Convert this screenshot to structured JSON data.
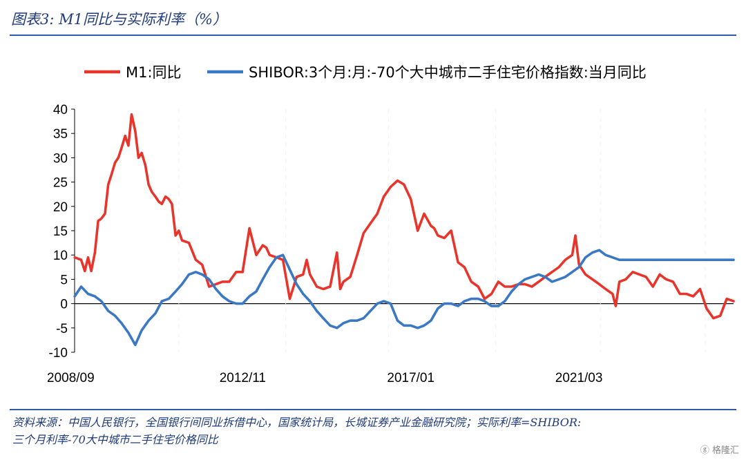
{
  "title": "图表3:  M1同比与实际利率（%）",
  "source_line1": "资料来源：中国人民银行，全国银行间同业拆借中心，国家统计局，长城证券产业金融研究院；实际利率=SHIBOR:",
  "source_line2": "三个月利率-70大中城市二手住宅价格同比",
  "watermark": "ⓖ 格隆汇",
  "chart_data": {
    "type": "line",
    "title": "",
    "xlabel": "",
    "ylabel": "",
    "ylim": [
      -10,
      40
    ],
    "yticks": [
      40,
      35,
      30,
      25,
      20,
      15,
      10,
      5,
      0,
      -5,
      -10
    ],
    "xlim": [
      2008.667,
      2025.0
    ],
    "xtick_labels": [
      {
        "label": "2008/09",
        "x": 2008.667
      },
      {
        "label": "2012/11",
        "x": 2012.833
      },
      {
        "label": "2017/01",
        "x": 2017.0
      },
      {
        "label": "2021/03",
        "x": 2021.167
      }
    ],
    "grid": false,
    "legend": "top",
    "series": [
      {
        "name": "M1:同比",
        "color": "#e8352b",
        "x": [
          2008.67,
          2008.83,
          2008.92,
          2009.0,
          2009.08,
          2009.17,
          2009.25,
          2009.33,
          2009.42,
          2009.5,
          2009.58,
          2009.67,
          2009.75,
          2009.83,
          2009.92,
          2010.0,
          2010.08,
          2010.17,
          2010.25,
          2010.33,
          2010.42,
          2010.5,
          2010.58,
          2010.67,
          2010.75,
          2010.83,
          2010.92,
          2011.0,
          2011.08,
          2011.17,
          2011.25,
          2011.33,
          2011.5,
          2011.67,
          2011.83,
          2012.0,
          2012.17,
          2012.33,
          2012.5,
          2012.67,
          2012.83,
          2013.0,
          2013.17,
          2013.33,
          2013.42,
          2013.5,
          2013.67,
          2013.83,
          2014.0,
          2014.17,
          2014.33,
          2014.42,
          2014.5,
          2014.67,
          2014.83,
          2015.0,
          2015.17,
          2015.25,
          2015.33,
          2015.5,
          2015.67,
          2015.83,
          2016.0,
          2016.17,
          2016.33,
          2016.5,
          2016.67,
          2016.83,
          2017.0,
          2017.17,
          2017.33,
          2017.5,
          2017.58,
          2017.67,
          2017.83,
          2018.0,
          2018.17,
          2018.33,
          2018.5,
          2018.67,
          2018.83,
          2019.0,
          2019.17,
          2019.33,
          2019.5,
          2019.67,
          2019.83,
          2020.0,
          2020.17,
          2020.33,
          2020.5,
          2020.67,
          2020.83,
          2021.0,
          2021.08,
          2021.17,
          2021.33,
          2021.5,
          2021.67,
          2021.83,
          2022.0,
          2022.08,
          2022.17,
          2022.33,
          2022.5,
          2022.67,
          2022.83,
          2023.0,
          2023.17,
          2023.33,
          2023.5,
          2023.67,
          2023.83,
          2024.0,
          2024.17,
          2024.33,
          2024.5,
          2024.67,
          2024.83,
          2025.0
        ],
        "values": [
          9.5,
          9.0,
          6.7,
          9.5,
          6.7,
          10.5,
          17.0,
          17.5,
          18.5,
          24.5,
          26.5,
          29.0,
          30.0,
          32.0,
          34.5,
          32.5,
          38.9,
          35.5,
          30.0,
          31.0,
          28.5,
          24.5,
          23.0,
          22.0,
          21.0,
          20.5,
          22.0,
          21.5,
          20.5,
          14.0,
          15.0,
          13.0,
          12.5,
          9.0,
          8.0,
          3.5,
          4.0,
          4.5,
          4.5,
          6.5,
          6.5,
          15.5,
          10.0,
          12.0,
          11.5,
          10.0,
          9.5,
          9.0,
          1.0,
          5.5,
          6.0,
          9.0,
          6.0,
          3.5,
          3.0,
          3.5,
          10.5,
          3.0,
          4.5,
          5.5,
          10.0,
          14.5,
          16.5,
          18.5,
          22.0,
          24.0,
          25.3,
          24.5,
          21.5,
          15.0,
          18.5,
          16.0,
          15.5,
          14.0,
          13.5,
          15.0,
          8.5,
          7.5,
          4.5,
          3.5,
          1.0,
          2.0,
          4.5,
          3.5,
          3.5,
          4.0,
          4.0,
          3.5,
          4.5,
          5.5,
          6.5,
          7.5,
          9.0,
          10.0,
          14.0,
          8.0,
          6.0,
          5.0,
          4.0,
          3.0,
          2.0,
          -0.5,
          4.5,
          5.0,
          6.5,
          6.0,
          5.5,
          3.5,
          6.0,
          5.0,
          4.5,
          2.0,
          2.0,
          1.5,
          3.0,
          -1.0,
          -3.0,
          -2.5,
          1.0,
          0.5
        ]
      },
      {
        "name": "SHIBOR:3个月:月:-70个大中城市二手住宅价格指数:当月同比",
        "color": "#3b78c4",
        "x": [
          2008.67,
          2008.83,
          2009.0,
          2009.17,
          2009.33,
          2009.5,
          2009.67,
          2009.83,
          2010.0,
          2010.17,
          2010.33,
          2010.5,
          2010.67,
          2010.83,
          2011.0,
          2011.17,
          2011.33,
          2011.5,
          2011.67,
          2011.83,
          2012.0,
          2012.17,
          2012.33,
          2012.5,
          2012.67,
          2012.83,
          2013.0,
          2013.17,
          2013.33,
          2013.5,
          2013.67,
          2013.83,
          2014.0,
          2014.17,
          2014.33,
          2014.5,
          2014.67,
          2014.83,
          2015.0,
          2015.17,
          2015.33,
          2015.5,
          2015.67,
          2015.83,
          2016.0,
          2016.17,
          2016.33,
          2016.5,
          2016.67,
          2016.83,
          2017.0,
          2017.17,
          2017.33,
          2017.5,
          2017.67,
          2017.83,
          2018.0,
          2018.17,
          2018.33,
          2018.5,
          2018.67,
          2018.83,
          2019.0,
          2019.17,
          2019.33,
          2019.5,
          2019.67,
          2019.83,
          2020.0,
          2020.17,
          2020.33,
          2020.5,
          2020.67,
          2020.83,
          2021.0,
          2021.17,
          2021.33,
          2021.5,
          2021.67,
          2021.83,
          2022.0,
          2022.17,
          2022.33,
          2022.5,
          2022.67,
          2022.83,
          2023.0,
          2023.17,
          2023.33,
          2023.5,
          2023.67,
          2023.83,
          2024.0,
          2024.17,
          2024.33,
          2024.5,
          2024.67,
          2024.83,
          2025.0
        ],
        "values": [
          1.5,
          3.5,
          2.0,
          1.5,
          0.5,
          -1.5,
          -2.5,
          -4.0,
          -6.0,
          -8.5,
          -5.5,
          -3.5,
          -2.0,
          0.5,
          1.0,
          2.5,
          4.0,
          6.0,
          6.5,
          6.0,
          5.0,
          3.0,
          1.5,
          0.5,
          0.0,
          0.0,
          1.5,
          2.5,
          5.0,
          7.5,
          9.5,
          10.0,
          7.0,
          4.0,
          2.0,
          0.5,
          -1.5,
          -3.0,
          -4.5,
          -5.0,
          -4.0,
          -3.5,
          -3.5,
          -3.0,
          -1.5,
          0.0,
          0.5,
          0.0,
          -3.5,
          -4.5,
          -4.5,
          -5.0,
          -4.5,
          -3.5,
          -1.0,
          0.0,
          0.0,
          -0.5,
          0.5,
          1.0,
          1.0,
          0.5,
          -0.5,
          -0.5,
          0.5,
          2.5,
          4.0,
          5.0,
          5.5,
          6.0,
          5.5,
          4.5,
          5.0,
          5.5,
          6.5,
          7.5,
          9.5,
          10.5,
          11.0,
          10.0,
          9.5,
          9.0,
          9.0,
          9.0,
          9.0,
          9.0,
          9.0,
          9.0,
          9.0,
          9.0,
          9.0,
          9.0,
          9.0,
          9.0,
          9.0,
          9.0,
          9.0,
          9.0,
          9.0
        ]
      }
    ]
  }
}
